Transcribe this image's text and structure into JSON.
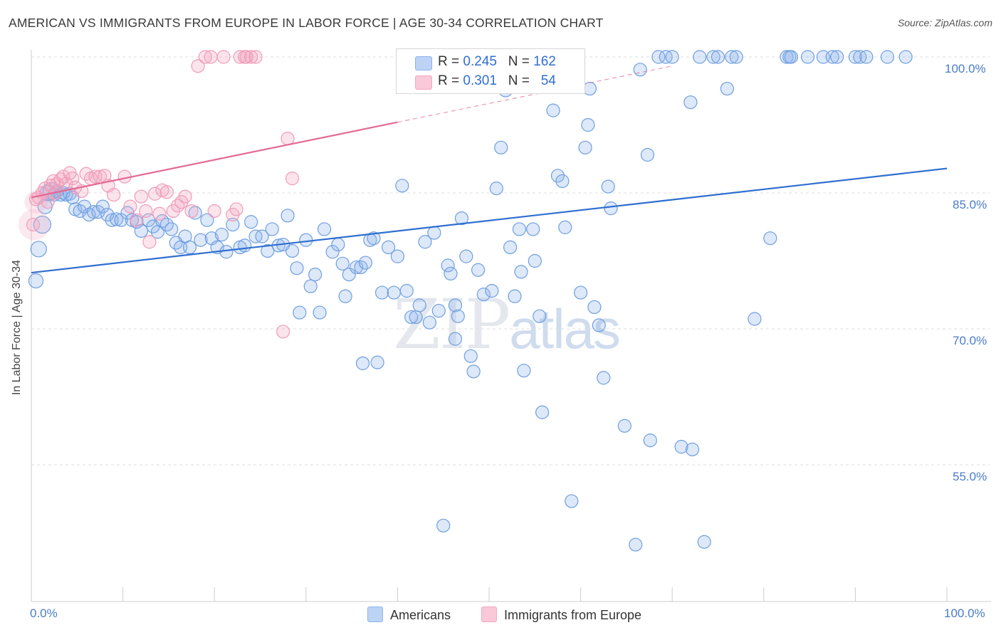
{
  "header": {
    "title": "AMERICAN VS IMMIGRANTS FROM EUROPE IN LABOR FORCE | AGE 30-34 CORRELATION CHART",
    "source": "Source: ZipAtlas.com"
  },
  "watermark": {
    "zip": "ZIP",
    "atlas": "atlas"
  },
  "legend": {
    "rows": [
      {
        "r_label": "R =",
        "r": "0.245",
        "n_label": "N =",
        "n": "162",
        "color": "#8fb3ea"
      },
      {
        "r_label": "R =",
        "r": "0.301",
        "n_label": "N =",
        "n": "54",
        "color": "#f3a6c0"
      }
    ]
  },
  "chart_data": {
    "type": "scatter",
    "title": "AMERICAN VS IMMIGRANTS FROM EUROPE IN LABOR FORCE | AGE 30-34 CORRELATION CHART",
    "xlabel": "",
    "ylabel": "In Labor Force | Age 30-34",
    "xlim": [
      0,
      100
    ],
    "ylim": [
      40,
      102
    ],
    "x_tick_labels": [
      "0.0%",
      "100.0%"
    ],
    "y_tick_labels": [
      "55.0%",
      "70.0%",
      "85.0%",
      "100.0%"
    ],
    "y_ticks": [
      55,
      70,
      85,
      100
    ],
    "grid": true,
    "legend_position": "bottom-center",
    "series": [
      {
        "name": "Americans",
        "color": "#6f9fe0",
        "trend": {
          "x": [
            0,
            100
          ],
          "y": [
            76.2,
            87.7
          ],
          "color": "#2f6fd0"
        },
        "points": [
          [
            0.5,
            75.3
          ],
          [
            0.8,
            78.8
          ],
          [
            1.2,
            81.5
          ],
          [
            1.5,
            83.5
          ],
          [
            1.8,
            85.0
          ],
          [
            2.2,
            85.2
          ],
          [
            2.5,
            84.8
          ],
          [
            2.8,
            85.2
          ],
          [
            3.2,
            84.8
          ],
          [
            3.5,
            85.0
          ],
          [
            3.8,
            84.8
          ],
          [
            4.2,
            84.9
          ],
          [
            4.5,
            84.5
          ],
          [
            4.8,
            83.2
          ],
          [
            5.3,
            83.0
          ],
          [
            5.8,
            83.5
          ],
          [
            6.3,
            82.6
          ],
          [
            6.8,
            82.9
          ],
          [
            7.3,
            82.9
          ],
          [
            7.8,
            83.5
          ],
          [
            8.3,
            82.6
          ],
          [
            8.8,
            82.0
          ],
          [
            9.3,
            82.1
          ],
          [
            9.8,
            82.0
          ],
          [
            10.5,
            82.8
          ],
          [
            11.0,
            82.0
          ],
          [
            11.5,
            81.8
          ],
          [
            12.0,
            80.8
          ],
          [
            12.8,
            82.0
          ],
          [
            13.3,
            81.3
          ],
          [
            13.8,
            80.7
          ],
          [
            14.3,
            81.9
          ],
          [
            14.8,
            81.5
          ],
          [
            15.3,
            81.0
          ],
          [
            15.8,
            79.5
          ],
          [
            16.3,
            79.0
          ],
          [
            16.8,
            80.2
          ],
          [
            17.3,
            79.0
          ],
          [
            17.9,
            82.8
          ],
          [
            18.5,
            79.8
          ],
          [
            19.2,
            82.0
          ],
          [
            19.7,
            80.0
          ],
          [
            20.3,
            79.0
          ],
          [
            20.8,
            80.4
          ],
          [
            21.3,
            78.5
          ],
          [
            22.0,
            81.5
          ],
          [
            22.8,
            79.0
          ],
          [
            23.3,
            79.2
          ],
          [
            24.0,
            81.8
          ],
          [
            24.5,
            80.2
          ],
          [
            25.2,
            80.2
          ],
          [
            25.8,
            78.6
          ],
          [
            26.3,
            81.0
          ],
          [
            27.0,
            79.2
          ],
          [
            27.5,
            79.3
          ],
          [
            28.0,
            82.5
          ],
          [
            28.5,
            78.6
          ],
          [
            29.0,
            76.7
          ],
          [
            29.3,
            71.8
          ],
          [
            30.0,
            79.8
          ],
          [
            30.5,
            74.7
          ],
          [
            31.0,
            76.0
          ],
          [
            31.5,
            71.8
          ],
          [
            32.0,
            81.0
          ],
          [
            32.9,
            78.5
          ],
          [
            33.5,
            79.3
          ],
          [
            34.0,
            77.2
          ],
          [
            34.3,
            73.6
          ],
          [
            34.7,
            76.0
          ],
          [
            35.5,
            76.8
          ],
          [
            36.0,
            76.8
          ],
          [
            36.5,
            77.3
          ],
          [
            37.0,
            79.8
          ],
          [
            37.4,
            80.0
          ],
          [
            36.2,
            66.2
          ],
          [
            37.8,
            66.3
          ],
          [
            38.3,
            74.0
          ],
          [
            39.0,
            79.0
          ],
          [
            39.6,
            74.0
          ],
          [
            40.0,
            78.0
          ],
          [
            40.5,
            85.8
          ],
          [
            41.0,
            74.2
          ],
          [
            41.5,
            71.3
          ],
          [
            42.0,
            71.3
          ],
          [
            42.4,
            72.6
          ],
          [
            43.0,
            79.6
          ],
          [
            43.5,
            70.7
          ],
          [
            44.0,
            80.6
          ],
          [
            44.5,
            72.0
          ],
          [
            45.0,
            48.3
          ],
          [
            45.5,
            77.0
          ],
          [
            45.8,
            76.1
          ],
          [
            46.3,
            72.6
          ],
          [
            46.6,
            71.4
          ],
          [
            46.3,
            68.9
          ],
          [
            47.0,
            82.2
          ],
          [
            47.5,
            78.0
          ],
          [
            48.0,
            67.0
          ],
          [
            48.3,
            65.3
          ],
          [
            48.8,
            76.5
          ],
          [
            49.4,
            73.8
          ],
          [
            50.3,
            74.2
          ],
          [
            50.8,
            85.5
          ],
          [
            51.3,
            90.0
          ],
          [
            51.8,
            96.3
          ],
          [
            52.3,
            79.0
          ],
          [
            52.8,
            73.6
          ],
          [
            53.3,
            81.0
          ],
          [
            53.5,
            76.3
          ],
          [
            53.8,
            65.4
          ],
          [
            54.8,
            81.0
          ],
          [
            55.0,
            77.5
          ],
          [
            55.5,
            71.4
          ],
          [
            55.8,
            60.8
          ],
          [
            56.4,
            100.0
          ],
          [
            57.0,
            94.1
          ],
          [
            57.5,
            86.9
          ],
          [
            58.0,
            86.3
          ],
          [
            58.3,
            81.2
          ],
          [
            59.0,
            51.0
          ],
          [
            59.5,
            100.0
          ],
          [
            60.0,
            74.0
          ],
          [
            60.5,
            90.0
          ],
          [
            60.8,
            92.5
          ],
          [
            61.0,
            96.5
          ],
          [
            61.5,
            72.4
          ],
          [
            62.0,
            70.4
          ],
          [
            62.5,
            64.6
          ],
          [
            63.0,
            85.7
          ],
          [
            63.3,
            83.3
          ],
          [
            64.8,
            59.3
          ],
          [
            66.0,
            46.2
          ],
          [
            66.5,
            98.6
          ],
          [
            67.3,
            89.2
          ],
          [
            67.6,
            57.7
          ],
          [
            68.5,
            100.0
          ],
          [
            69.3,
            100.0
          ],
          [
            70.0,
            100.0
          ],
          [
            71.0,
            57.0
          ],
          [
            72.2,
            56.7
          ],
          [
            72.0,
            95.0
          ],
          [
            73.0,
            100.0
          ],
          [
            73.5,
            46.5
          ],
          [
            74.5,
            100.0
          ],
          [
            75.0,
            100.0
          ],
          [
            76.0,
            96.5
          ],
          [
            76.5,
            100.0
          ],
          [
            77.0,
            100.0
          ],
          [
            79.0,
            71.1
          ],
          [
            80.7,
            80.0
          ],
          [
            82.5,
            100.0
          ],
          [
            82.8,
            100.0
          ],
          [
            83.0,
            100.0
          ],
          [
            84.8,
            100.0
          ],
          [
            86.5,
            100.0
          ],
          [
            87.5,
            100.0
          ],
          [
            88.0,
            100.0
          ],
          [
            90.0,
            100.0
          ],
          [
            90.5,
            100.0
          ],
          [
            91.2,
            100.0
          ],
          [
            93.5,
            100.0
          ],
          [
            95.5,
            100.0
          ]
        ]
      },
      {
        "name": "Immigrants from Europe",
        "color": "#f09bb8",
        "trend": {
          "x": [
            0,
            40
          ],
          "y": [
            84.5,
            92.8
          ],
          "dash_to": [
            70,
            99.0
          ],
          "color": "#e26a94"
        },
        "points": [
          [
            0.2,
            81.5
          ],
          [
            0.5,
            84.3
          ],
          [
            0.8,
            84.5
          ],
          [
            1.2,
            85.0
          ],
          [
            1.5,
            85.5
          ],
          [
            1.8,
            84.0
          ],
          [
            2.1,
            85.8
          ],
          [
            2.4,
            86.3
          ],
          [
            2.6,
            85.0
          ],
          [
            2.8,
            86.0
          ],
          [
            3.2,
            86.5
          ],
          [
            3.5,
            86.8
          ],
          [
            3.8,
            86.0
          ],
          [
            4.2,
            87.2
          ],
          [
            4.5,
            86.6
          ],
          [
            4.8,
            85.6
          ],
          [
            5.5,
            85.2
          ],
          [
            6.0,
            87.1
          ],
          [
            6.5,
            86.6
          ],
          [
            7.0,
            86.8
          ],
          [
            7.5,
            86.8
          ],
          [
            8.0,
            86.9
          ],
          [
            8.4,
            85.8
          ],
          [
            9.0,
            84.8
          ],
          [
            10.2,
            86.8
          ],
          [
            10.8,
            83.5
          ],
          [
            11.5,
            82.0
          ],
          [
            12.0,
            84.6
          ],
          [
            12.5,
            83.0
          ],
          [
            12.9,
            79.6
          ],
          [
            13.5,
            84.9
          ],
          [
            14.0,
            82.7
          ],
          [
            14.3,
            85.3
          ],
          [
            14.8,
            85.1
          ],
          [
            15.5,
            83.0
          ],
          [
            16.0,
            83.6
          ],
          [
            16.4,
            84.0
          ],
          [
            16.8,
            84.6
          ],
          [
            17.5,
            83.0
          ],
          [
            18.2,
            99.0
          ],
          [
            19.0,
            100.0
          ],
          [
            19.6,
            100.0
          ],
          [
            20.0,
            83.0
          ],
          [
            21.0,
            100.0
          ],
          [
            22.0,
            82.6
          ],
          [
            22.4,
            83.2
          ],
          [
            22.8,
            100.0
          ],
          [
            23.3,
            100.0
          ],
          [
            23.5,
            100.0
          ],
          [
            24.0,
            100.0
          ],
          [
            24.5,
            100.0
          ],
          [
            28.0,
            91.0
          ],
          [
            28.5,
            86.6
          ],
          [
            27.5,
            69.7
          ]
        ]
      }
    ]
  }
}
